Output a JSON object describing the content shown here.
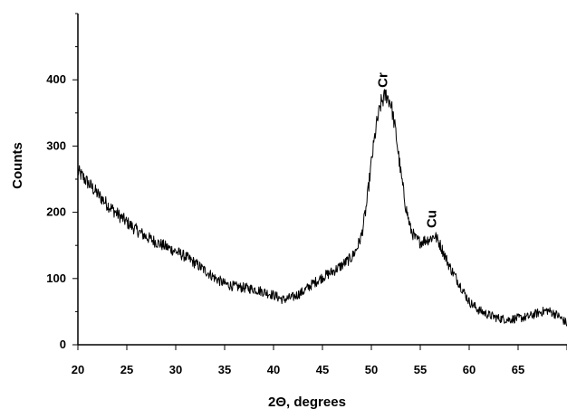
{
  "chart_data": {
    "type": "line",
    "title": "",
    "xlabel": "2Θ, degrees",
    "ylabel": "Counts",
    "xlim": [
      20,
      70
    ],
    "ylim": [
      0,
      500
    ],
    "xticks": [
      20,
      25,
      30,
      35,
      40,
      45,
      50,
      55,
      60,
      65
    ],
    "yticks": [
      0,
      100,
      200,
      300,
      400
    ],
    "grid": false,
    "legend": "none",
    "line_color": "#000000",
    "series": [
      {
        "x": [
          20,
          21,
          22,
          23,
          24,
          25,
          26,
          27,
          28,
          29,
          30,
          31,
          32,
          33,
          34,
          35,
          36,
          37,
          38,
          39,
          40,
          41,
          42,
          43,
          44,
          45,
          46,
          47,
          48,
          48.5,
          49,
          49.5,
          50,
          50.5,
          51,
          51.5,
          52,
          52.5,
          53,
          53.5,
          54,
          54.5,
          55,
          55.5,
          56,
          56.5,
          57,
          57.5,
          58,
          59,
          60,
          61,
          62,
          63,
          64,
          65,
          66,
          67,
          68,
          69,
          70
        ],
        "y": [
          262,
          245,
          228,
          212,
          198,
          185,
          173,
          163,
          155,
          148,
          141,
          133,
          123,
          112,
          101,
          92,
          88,
          86,
          84,
          80,
          75,
          68,
          72,
          80,
          92,
          102,
          110,
          120,
          132,
          145,
          165,
          210,
          275,
          330,
          365,
          378,
          365,
          320,
          260,
          210,
          175,
          160,
          155,
          158,
          160,
          165,
          152,
          135,
          118,
          92,
          65,
          52,
          45,
          40,
          38,
          40,
          42,
          48,
          52,
          45,
          32
        ]
      }
    ],
    "annotations": [
      {
        "text": "Cr",
        "x": 51.6,
        "y": 380
      },
      {
        "text": "Cu",
        "x": 56.6,
        "y": 168
      }
    ]
  }
}
